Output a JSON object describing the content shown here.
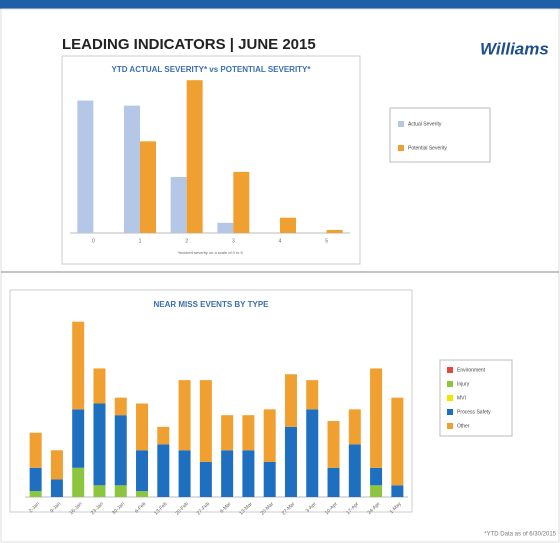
{
  "header": {
    "title": "LEADING INDICATORS | JUNE 2015",
    "logo": "Williams"
  },
  "footnote": "*YTD Data as of 6/30/2015",
  "chart_data": [
    {
      "type": "grouped_bar",
      "title": "YTD ACTUAL SEVERITY* vs POTENTIAL SEVERITY*",
      "x_label": "*Incident severity on a scale of 0 to 5",
      "categories": [
        "0",
        "1",
        "2",
        "3",
        "4",
        "5"
      ],
      "series": [
        {
          "name": "Actual Severity",
          "color": "#b4c7e7",
          "values": [
            13,
            12.5,
            5.5,
            1,
            0,
            0
          ]
        },
        {
          "name": "Potential Severity",
          "color": "#f0a030",
          "values": [
            0,
            9,
            15,
            6,
            1.5,
            0.3
          ]
        }
      ],
      "ylim": [
        0,
        16
      ]
    },
    {
      "type": "stacked_bar",
      "title": "NEAR MISS EVENTS BY TYPE",
      "categories": [
        "2-Jan",
        "9-Jan",
        "16-Jan",
        "23-Jan",
        "30-Jan",
        "6-Feb",
        "13-Feb",
        "20-Feb",
        "27-Feb",
        "6-Mar",
        "13-Mar",
        "20-Mar",
        "27-Mar",
        "3-Apr",
        "10-Apr",
        "17-Apr",
        "24-Apr",
        "1-May"
      ],
      "series": [
        {
          "name": "Environment",
          "color": "#e8473f",
          "values": [
            0,
            0,
            0,
            0,
            0,
            0,
            0,
            0,
            0,
            0,
            0,
            0,
            0,
            0,
            0,
            0,
            0,
            0
          ]
        },
        {
          "name": "Injury",
          "color": "#8cc63f",
          "values": [
            1,
            0,
            5,
            2,
            2,
            1,
            0,
            0,
            0,
            0,
            0,
            0,
            0,
            0,
            0,
            0,
            2,
            0
          ]
        },
        {
          "name": "MVI",
          "color": "#f2e600",
          "values": [
            0,
            0,
            0,
            0,
            0,
            0,
            0,
            0,
            0,
            0,
            0,
            0,
            0,
            0,
            0,
            0,
            0,
            0
          ]
        },
        {
          "name": "Process Safety",
          "color": "#1f6fc0",
          "values": [
            4,
            3,
            10,
            14,
            12,
            7,
            9,
            8,
            6,
            8,
            8,
            6,
            12,
            15,
            5,
            9,
            3,
            2
          ]
        },
        {
          "name": "Other",
          "color": "#f0a030",
          "values": [
            6,
            5,
            15,
            6,
            3,
            8,
            3,
            12,
            14,
            6,
            6,
            9,
            9,
            5,
            8,
            6,
            17,
            15
          ]
        }
      ],
      "ylim": [
        0,
        32
      ]
    }
  ]
}
